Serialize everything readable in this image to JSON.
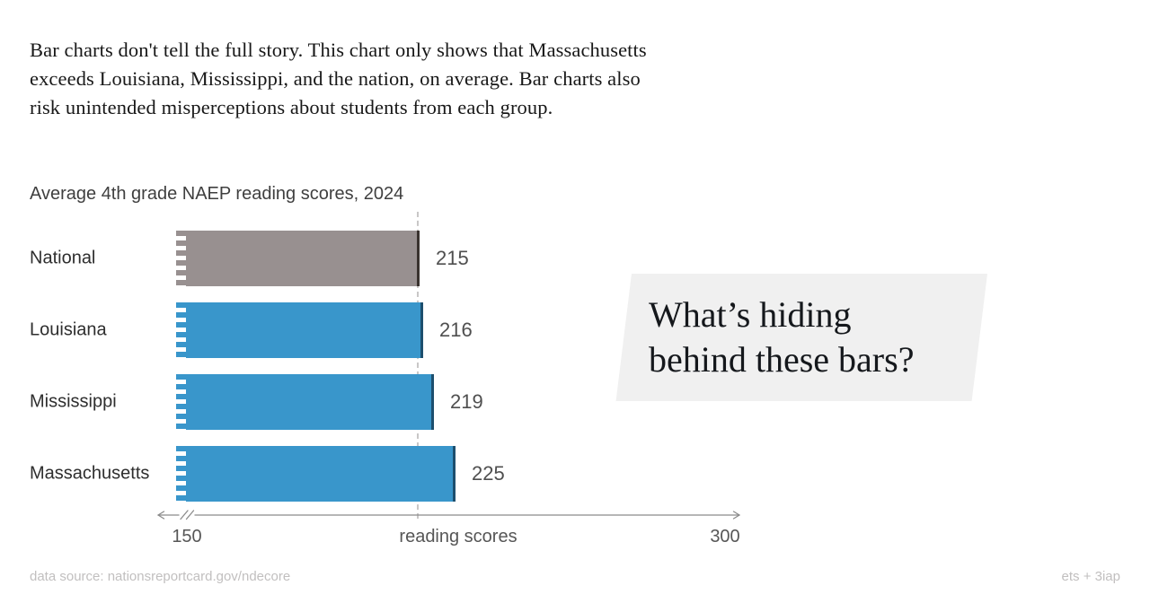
{
  "intro": {
    "text": "Bar charts don't tell the full story. This chart only shows that Massachusetts exceeds Louisiana, Mississippi, and the nation, on average. Bar charts also risk unintended misperceptions about students from each group."
  },
  "chart": {
    "title": "Average 4th grade NAEP reading scores, 2024",
    "xlabel": "reading scores",
    "axis": {
      "min": 150,
      "max": 300,
      "tick_left": "150",
      "tick_right": "300"
    },
    "reference_value": 215,
    "bars": [
      {
        "label": "National",
        "value": 215,
        "color": "#989090",
        "edge": "#3a332f"
      },
      {
        "label": "Louisiana",
        "value": 216,
        "color": "#3996cb",
        "edge": "#1d4f6e"
      },
      {
        "label": "Mississippi",
        "value": 219,
        "color": "#3996cb",
        "edge": "#1d4f6e"
      },
      {
        "label": "Massachusetts",
        "value": 225,
        "color": "#3996cb",
        "edge": "#1d4f6e"
      }
    ]
  },
  "callout": {
    "line1": "What’s hiding",
    "line2": "behind these bars?"
  },
  "footer": {
    "source": "data source: nationsreportcard.gov/ndecore",
    "credit": "ets + 3iap"
  },
  "chart_data": {
    "type": "bar",
    "orientation": "horizontal",
    "title": "Average 4th grade NAEP reading scores, 2024",
    "categories": [
      "National",
      "Louisiana",
      "Mississippi",
      "Massachusetts"
    ],
    "values": [
      215,
      216,
      219,
      225
    ],
    "xlabel": "reading scores",
    "xlim": [
      150,
      300
    ],
    "axis_break_at_left": true,
    "reference_line_x": 215,
    "bar_colors": [
      "#989090",
      "#3996cb",
      "#3996cb",
      "#3996cb"
    ],
    "value_labels_shown": true,
    "grid": false,
    "legend": "none",
    "annotation": "What’s hiding behind these bars?"
  }
}
